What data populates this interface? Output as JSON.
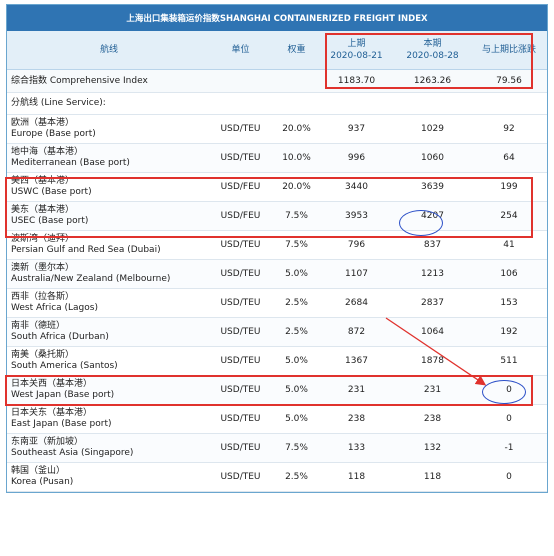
{
  "title": "上海出口集装箱运价指数SHANGHAI CONTAINERIZED FREIGHT INDEX",
  "header": {
    "route": "航线",
    "unit": "单位",
    "weight": "权重",
    "prev_label": "上期",
    "prev_date": "2020-08-21",
    "curr_label": "本期",
    "curr_date": "2020-08-28",
    "change": "与上期比涨跌"
  },
  "comprehensive": {
    "label": "综合指数 Comprehensive Index",
    "prev": "1183.70",
    "curr": "1263.26",
    "change": "79.56"
  },
  "sub_heading": "分航线 (Line Service):",
  "routes": [
    {
      "cn": "欧洲（基本港）",
      "en": "Europe (Base port)",
      "unit": "USD/TEU",
      "weight": "20.0%",
      "prev": "937",
      "curr": "1029",
      "change": "92"
    },
    {
      "cn": "地中海（基本港）",
      "en": "Mediterranean (Base port)",
      "unit": "USD/TEU",
      "weight": "10.0%",
      "prev": "996",
      "curr": "1060",
      "change": "64"
    },
    {
      "cn": "美西（基本港）",
      "en": "USWC (Base port)",
      "unit": "USD/FEU",
      "weight": "20.0%",
      "prev": "3440",
      "curr": "3639",
      "change": "199"
    },
    {
      "cn": "美东（基本港）",
      "en": "USEC (Base port)",
      "unit": "USD/FEU",
      "weight": "7.5%",
      "prev": "3953",
      "curr": "4207",
      "change": "254"
    },
    {
      "cn": "波斯湾（迪拜）",
      "en": "Persian Gulf and Red Sea (Dubai)",
      "unit": "USD/TEU",
      "weight": "7.5%",
      "prev": "796",
      "curr": "837",
      "change": "41"
    },
    {
      "cn": "澳新（墨尔本）",
      "en": "Australia/New Zealand (Melbourne)",
      "unit": "USD/TEU",
      "weight": "5.0%",
      "prev": "1107",
      "curr": "1213",
      "change": "106"
    },
    {
      "cn": "西非（拉各斯）",
      "en": "West Africa (Lagos)",
      "unit": "USD/TEU",
      "weight": "2.5%",
      "prev": "2684",
      "curr": "2837",
      "change": "153"
    },
    {
      "cn": "南非（德班）",
      "en": "South Africa (Durban)",
      "unit": "USD/TEU",
      "weight": "2.5%",
      "prev": "872",
      "curr": "1064",
      "change": "192"
    },
    {
      "cn": "南美（桑托斯）",
      "en": "South America (Santos)",
      "unit": "USD/TEU",
      "weight": "5.0%",
      "prev": "1367",
      "curr": "1878",
      "change": "511"
    },
    {
      "cn": "日本关西（基本港）",
      "en": "West Japan (Base port)",
      "unit": "USD/TEU",
      "weight": "5.0%",
      "prev": "231",
      "curr": "231",
      "change": "0"
    },
    {
      "cn": "日本关东（基本港）",
      "en": "East Japan (Base port)",
      "unit": "USD/TEU",
      "weight": "5.0%",
      "prev": "238",
      "curr": "238",
      "change": "0"
    },
    {
      "cn": "东南亚（新加坡）",
      "en": "Southeast Asia (Singapore)",
      "unit": "USD/TEU",
      "weight": "7.5%",
      "prev": "133",
      "curr": "132",
      "change": "-1"
    },
    {
      "cn": "韩国（釜山）",
      "en": "Korea (Pusan)",
      "unit": "USD/TEU",
      "weight": "2.5%",
      "prev": "118",
      "curr": "118",
      "change": "0"
    }
  ],
  "colors": {
    "title_bg": "#2f74b3",
    "header_bg": "#e3eff8",
    "highlight_box": "#e0322d",
    "circle": "#2b4fc7"
  }
}
